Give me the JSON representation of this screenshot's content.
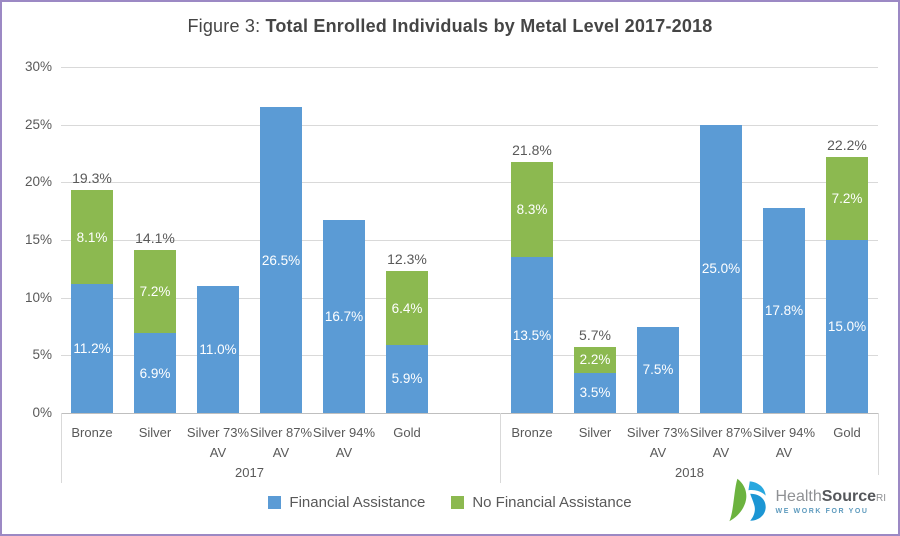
{
  "title": {
    "prefix": "Figure 3: ",
    "main": "Total Enrolled Individuals by Metal Level 2017-2018"
  },
  "chart_data": {
    "type": "bar",
    "stacked": true,
    "title": "Figure 3: Total Enrolled Individuals by Metal Level 2017-2018",
    "xlabel": "",
    "ylabel": "",
    "ylim_pct": [
      0,
      30
    ],
    "grid": true,
    "legend_position": "bottom",
    "y_ticks": [
      "0%",
      "5%",
      "10%",
      "15%",
      "20%",
      "25%",
      "30%"
    ],
    "categories": [
      "Bronze",
      "Silver",
      "Silver 73% AV",
      "Silver 87% AV",
      "Silver 94% AV",
      "Gold"
    ],
    "colors": {
      "financial_assistance": "#5B9BD5",
      "no_financial_assistance": "#8CB950"
    },
    "series": [
      {
        "name": "Financial Assistance",
        "values_2017": [
          11.2,
          6.9,
          11.0,
          26.5,
          16.7,
          5.9
        ],
        "values_2018": [
          13.5,
          3.5,
          7.5,
          25.0,
          17.8,
          15.0
        ]
      },
      {
        "name": "No Financial Assistance",
        "values_2017": [
          8.1,
          7.2,
          0,
          0,
          0,
          6.4
        ],
        "values_2018": [
          8.3,
          2.2,
          0,
          0,
          0,
          7.2
        ]
      }
    ],
    "groups": [
      {
        "year": "2017",
        "bars": [
          {
            "category": "Bronze",
            "fa": 11.2,
            "nfa": 8.1,
            "fa_label": "11.2%",
            "nfa_label": "8.1%",
            "total_label": "19.3%"
          },
          {
            "category": "Silver",
            "fa": 6.9,
            "nfa": 7.2,
            "fa_label": "6.9%",
            "nfa_label": "7.2%",
            "total_label": "14.1%"
          },
          {
            "category": "Silver 73% AV",
            "fa": 11.0,
            "nfa": 0,
            "fa_label": "11.0%"
          },
          {
            "category": "Silver 87% AV",
            "fa": 26.5,
            "nfa": 0,
            "fa_label": "26.5%"
          },
          {
            "category": "Silver 94% AV",
            "fa": 16.7,
            "nfa": 0,
            "fa_label": "16.7%"
          },
          {
            "category": "Gold",
            "fa": 5.9,
            "nfa": 6.4,
            "fa_label": "5.9%",
            "nfa_label": "6.4%",
            "total_label": "12.3%"
          }
        ]
      },
      {
        "year": "2018",
        "bars": [
          {
            "category": "Bronze",
            "fa": 13.5,
            "nfa": 8.3,
            "fa_label": "13.5%",
            "nfa_label": "8.3%",
            "total_label": "21.8%"
          },
          {
            "category": "Silver",
            "fa": 3.5,
            "nfa": 2.2,
            "fa_label": "3.5%",
            "nfa_label": "2.2%",
            "total_label": "5.7%"
          },
          {
            "category": "Silver 73% AV",
            "fa": 7.5,
            "nfa": 0,
            "fa_label": "7.5%"
          },
          {
            "category": "Silver 87% AV",
            "fa": 25.0,
            "nfa": 0,
            "fa_label": "25.0%"
          },
          {
            "category": "Silver 94% AV",
            "fa": 17.8,
            "nfa": 0,
            "fa_label": "17.8%"
          },
          {
            "category": "Gold",
            "fa": 15.0,
            "nfa": 7.2,
            "fa_label": "15.0%",
            "nfa_label": "7.2%",
            "total_label": "22.2%"
          }
        ]
      }
    ]
  },
  "legend": {
    "items": [
      {
        "label": "Financial Assistance",
        "color": "#5B9BD5"
      },
      {
        "label": "No Financial Assistance",
        "color": "#8CB950"
      }
    ]
  },
  "logo": {
    "text_light": "Health",
    "text_bold": "Source",
    "text_suffix": "RI",
    "tagline": "WE WORK FOR YOU",
    "green": "#6CB33F",
    "blue_light": "#29A8DF",
    "blue_dark": "#1C96D4"
  },
  "frame": {
    "border_color": "#9C89C4",
    "background": "#FFFFFF"
  }
}
